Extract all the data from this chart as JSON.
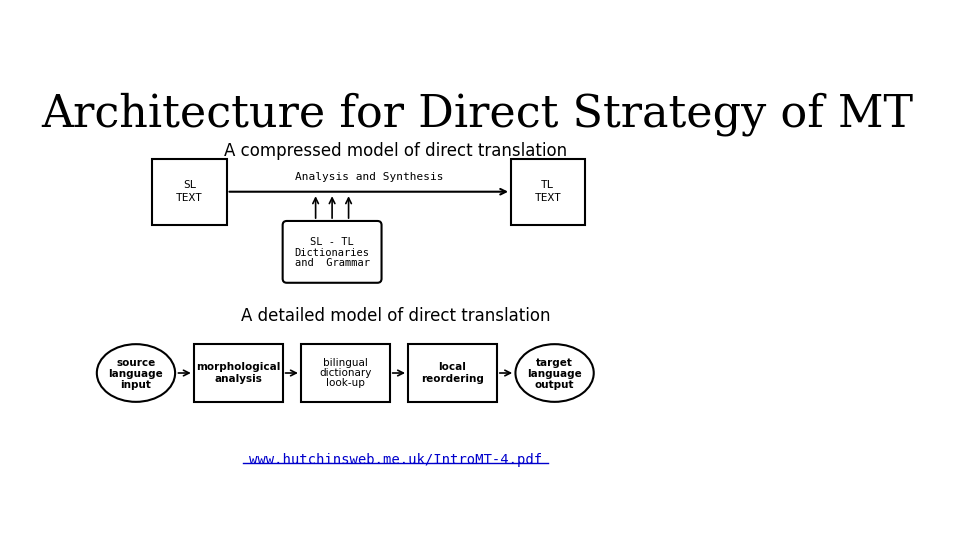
{
  "title": "Architecture for Direct Strategy of MT",
  "subtitle1": "A compressed model of direct translation",
  "subtitle2": "A detailed model of direct translation",
  "url": "www.hutchinsweb.me.uk/IntroMT-4.pdf",
  "bg_color": "#ffffff",
  "title_fontsize": 32,
  "subtitle_fontsize": 12,
  "url_color": "#0000cc"
}
